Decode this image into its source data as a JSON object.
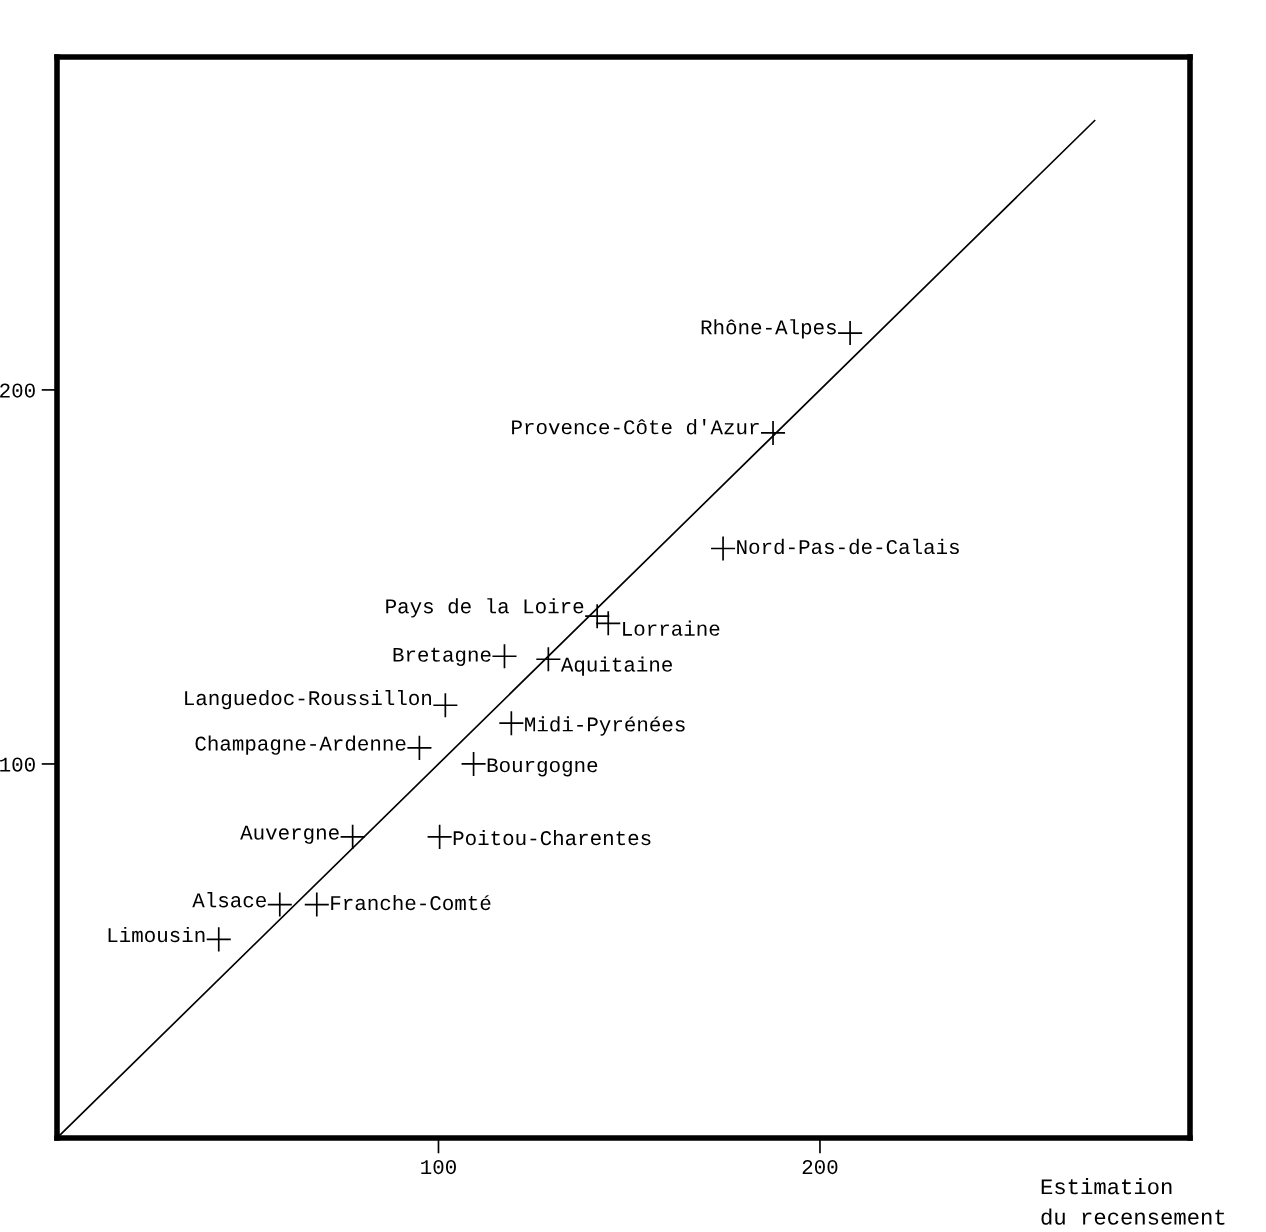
{
  "chart_data": {
    "type": "scatter",
    "xlabel": "Estimation\ndu recensement",
    "xlim": [
      0,
      297
    ],
    "ylim": [
      0,
      289
    ],
    "xticks": [
      100,
      200
    ],
    "yticks": [
      100,
      200
    ],
    "grid": false,
    "marker": "cross",
    "series": [
      {
        "type": "scatter",
        "color": "#000000",
        "x": [
          207.9,
          187.7,
          174.6,
          141.6,
          144.5,
          117.3,
          128.8,
          101.8,
          119.1,
          95.0,
          109.2,
          77.5,
          100.3,
          58.4,
          68.1,
          42.4
        ],
        "values": [
          215.2,
          188.5,
          157.6,
          139.5,
          137.6,
          128.8,
          128.0,
          115.7,
          110.9,
          104.3,
          100.0,
          80.5,
          80.5,
          62.4,
          62.4,
          53.1
        ],
        "value_labels": [
          "Rhône-Alpes",
          "Provence-Côte d'Azur",
          "Nord-Pas-de-Calais",
          "Pays de la Loire",
          "Lorraine",
          "Bretagne",
          "Aquitaine",
          "Languedoc-Roussillon",
          "Midi-Pyrénées",
          "Champagne-Ardenne",
          "Bourgogne",
          "Auvergne",
          "Poitou-Charentes",
          "Alsace",
          "Franche-Comté",
          "Limousin"
        ]
      },
      {
        "type": "line",
        "marker": "none",
        "color": "#000000",
        "line_style": "solid",
        "x": [
          0,
          272
        ],
        "values": [
          0,
          272
        ]
      }
    ]
  }
}
